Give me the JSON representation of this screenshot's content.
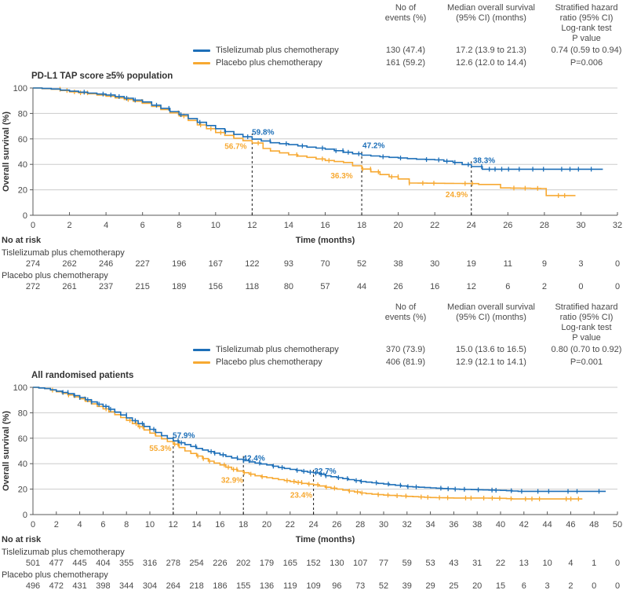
{
  "labels": {
    "no_at_risk": "No at risk"
  },
  "stats_header": {
    "events": [
      "No of",
      "events (%)"
    ],
    "median": [
      "Median overall survival",
      "(95% CI) (months)"
    ],
    "hr": [
      "Stratified hazard",
      "ratio (95% CI)",
      "Log-rank test",
      "P value"
    ]
  },
  "chart_data": [
    {
      "type": "line",
      "subtype": "kaplan-meier",
      "title": "PD-L1 TAP score ≥5% population",
      "xlabel": "Time (months)",
      "ylabel": "Overall survival (%)",
      "xlim": [
        0,
        32
      ],
      "xtick_step": 2,
      "ylim": [
        0,
        100
      ],
      "ytick_step": 20,
      "grid": true,
      "dashed_months": [
        12,
        18,
        24
      ],
      "series": [
        {
          "name": "Tislelizumab plus chemotherapy",
          "color": "#1d6fb8",
          "events": "130 (47.4)",
          "median": "17.2 (13.9 to 21.3)",
          "hr": "0.74 (0.59 to 0.94)",
          "points": [
            [
              0,
              100
            ],
            [
              1,
              99.2
            ],
            [
              2,
              97.5
            ],
            [
              3,
              96
            ],
            [
              4,
              94.5
            ],
            [
              5,
              92
            ],
            [
              6,
              89
            ],
            [
              7,
              84
            ],
            [
              8,
              79
            ],
            [
              9,
              73
            ],
            [
              10,
              68
            ],
            [
              11,
              63.5
            ],
            [
              12,
              59.8
            ],
            [
              13,
              57
            ],
            [
              14,
              55.5
            ],
            [
              15,
              53.5
            ],
            [
              16,
              52
            ],
            [
              17,
              49.5
            ],
            [
              18,
              47.2
            ],
            [
              19,
              46
            ],
            [
              20,
              45
            ],
            [
              21,
              44
            ],
            [
              22,
              43.5
            ],
            [
              23,
              41.5
            ],
            [
              24,
              38.3
            ],
            [
              24.6,
              36.2
            ],
            [
              31.2,
              36.2
            ]
          ]
        },
        {
          "name": "Placebo plus chemotherapy",
          "color": "#f7a932",
          "events": "161 (59.2)",
          "median": "12.6 (12.0 to 14.4)",
          "hr": "P=0.006",
          "points": [
            [
              0,
              100
            ],
            [
              1,
              99
            ],
            [
              2,
              97
            ],
            [
              3,
              95.5
            ],
            [
              4,
              93.5
            ],
            [
              5,
              91
            ],
            [
              6,
              88
            ],
            [
              7,
              83
            ],
            [
              8,
              78
            ],
            [
              9,
              71
            ],
            [
              10,
              65
            ],
            [
              11,
              60.5
            ],
            [
              12,
              56.7
            ],
            [
              12.6,
              52.5
            ],
            [
              13,
              50.5
            ],
            [
              14,
              47.5
            ],
            [
              15,
              45.5
            ],
            [
              16,
              43
            ],
            [
              17,
              41.5
            ],
            [
              18,
              36.3
            ],
            [
              19,
              32
            ],
            [
              20,
              28.5
            ],
            [
              20.6,
              25.3
            ],
            [
              24,
              24.9
            ],
            [
              24.4,
              24.2
            ],
            [
              25.3,
              24.2
            ],
            [
              25.6,
              21.5
            ],
            [
              27.8,
              21
            ],
            [
              28.1,
              15.5
            ],
            [
              29.7,
              15.5
            ]
          ]
        }
      ],
      "annotations": [
        {
          "t": "59.8%",
          "m": 12.6,
          "p": 65,
          "s": 0
        },
        {
          "t": "56.7%",
          "m": 11.1,
          "p": 54,
          "s": 1
        },
        {
          "t": "47.2%",
          "m": 18.65,
          "p": 54.5,
          "s": 0
        },
        {
          "t": "36.3%",
          "m": 16.9,
          "p": 31,
          "s": 1
        },
        {
          "t": "38.3%",
          "m": 24.7,
          "p": 43,
          "s": 0
        },
        {
          "t": "24.9%",
          "m": 23.2,
          "p": 16,
          "s": 1
        }
      ],
      "at_risk": [
        {
          "label": "Tislelizumab plus chemotherapy",
          "values": [
            274,
            262,
            246,
            227,
            196,
            167,
            122,
            93,
            70,
            52,
            38,
            30,
            19,
            11,
            9,
            3,
            0
          ]
        },
        {
          "label": "Placebo plus chemotherapy",
          "values": [
            272,
            261,
            237,
            215,
            189,
            156,
            118,
            80,
            57,
            44,
            26,
            16,
            12,
            6,
            2,
            0,
            0
          ]
        }
      ]
    },
    {
      "type": "line",
      "subtype": "kaplan-meier",
      "title": "All randomised patients",
      "xlabel": "Time (months)",
      "ylabel": "Overall survival (%)",
      "xlim": [
        0,
        50
      ],
      "xtick_step": 2,
      "ylim": [
        0,
        100
      ],
      "ytick_step": 20,
      "grid": true,
      "dashed_months": [
        12,
        18,
        24
      ],
      "series": [
        {
          "name": "Tislelizumab plus chemotherapy",
          "color": "#1d6fb8",
          "events": "370 (73.9)",
          "median": "15.0 (13.6 to 16.5)",
          "hr": "0.80 (0.70 to 0.92)",
          "points": [
            [
              0,
              100
            ],
            [
              1,
              99
            ],
            [
              2,
              97
            ],
            [
              3,
              95
            ],
            [
              4,
              92
            ],
            [
              5,
              88.5
            ],
            [
              6,
              85
            ],
            [
              7,
              80.5
            ],
            [
              8,
              76
            ],
            [
              9,
              71.5
            ],
            [
              10,
              67
            ],
            [
              11,
              62
            ],
            [
              12,
              57.9
            ],
            [
              13,
              55
            ],
            [
              14,
              52
            ],
            [
              15,
              49.5
            ],
            [
              16,
              47
            ],
            [
              17,
              44.5
            ],
            [
              18,
              42.4
            ],
            [
              19,
              40.5
            ],
            [
              20,
              39
            ],
            [
              21,
              37
            ],
            [
              22,
              35.5
            ],
            [
              23,
              34
            ],
            [
              24,
              32.7
            ],
            [
              25,
              30.5
            ],
            [
              26,
              29
            ],
            [
              27,
              27.5
            ],
            [
              28,
              26
            ],
            [
              29,
              25
            ],
            [
              30,
              24
            ],
            [
              31,
              23
            ],
            [
              32,
              22
            ],
            [
              33,
              21.5
            ],
            [
              34,
              21
            ],
            [
              35,
              20.5
            ],
            [
              36,
              20
            ],
            [
              38,
              19.5
            ],
            [
              40,
              19
            ],
            [
              41.5,
              18.3
            ],
            [
              49,
              18.3
            ]
          ]
        },
        {
          "name": "Placebo plus chemotherapy",
          "color": "#f7a932",
          "events": "406 (81.9)",
          "median": "12.9 (12.1 to 14.1)",
          "hr": "P=0.001",
          "points": [
            [
              0,
              100
            ],
            [
              1,
              99
            ],
            [
              2,
              96.5
            ],
            [
              3,
              94
            ],
            [
              4,
              91
            ],
            [
              5,
              87
            ],
            [
              6,
              83
            ],
            [
              7,
              78.5
            ],
            [
              8,
              74
            ],
            [
              9,
              69
            ],
            [
              10,
              64
            ],
            [
              11,
              59.5
            ],
            [
              12,
              55.3
            ],
            [
              13,
              50
            ],
            [
              14,
              46
            ],
            [
              15,
              42
            ],
            [
              16,
              39
            ],
            [
              17,
              35.5
            ],
            [
              18,
              32.9
            ],
            [
              19,
              30.5
            ],
            [
              20,
              29
            ],
            [
              21,
              27.5
            ],
            [
              22,
              26
            ],
            [
              23,
              24.5
            ],
            [
              24,
              23.4
            ],
            [
              25,
              21.5
            ],
            [
              26,
              20
            ],
            [
              27,
              18.5
            ],
            [
              28,
              17
            ],
            [
              29,
              16
            ],
            [
              30,
              15.3
            ],
            [
              31,
              14.8
            ],
            [
              32,
              14.3
            ],
            [
              33,
              13.8
            ],
            [
              34,
              13.4
            ],
            [
              35,
              13.2
            ],
            [
              36,
              13
            ],
            [
              38,
              13
            ],
            [
              40,
              12.8
            ],
            [
              41,
              12.3
            ],
            [
              47,
              12.3
            ]
          ]
        }
      ],
      "annotations": [
        {
          "t": "57.9%",
          "m": 12.9,
          "p": 62,
          "s": 0
        },
        {
          "t": "55.3%",
          "m": 10.9,
          "p": 52,
          "s": 1
        },
        {
          "t": "42.4%",
          "m": 18.9,
          "p": 44,
          "s": 0
        },
        {
          "t": "32.9%",
          "m": 17.05,
          "p": 27,
          "s": 1
        },
        {
          "t": "32.7%",
          "m": 25,
          "p": 34,
          "s": 0
        },
        {
          "t": "23.4%",
          "m": 22.95,
          "p": 15,
          "s": 1
        }
      ],
      "at_risk": [
        {
          "label": "Tislelizumab plus chemotherapy",
          "values": [
            501,
            477,
            445,
            404,
            355,
            316,
            278,
            254,
            226,
            202,
            179,
            165,
            152,
            130,
            107,
            77,
            59,
            53,
            43,
            31,
            22,
            13,
            10,
            4,
            1,
            0
          ]
        },
        {
          "label": "Placebo plus chemotherapy",
          "values": [
            496,
            472,
            431,
            398,
            344,
            304,
            264,
            218,
            186,
            155,
            136,
            119,
            109,
            96,
            73,
            52,
            39,
            29,
            25,
            20,
            15,
            6,
            3,
            2,
            0,
            0
          ]
        }
      ]
    }
  ]
}
